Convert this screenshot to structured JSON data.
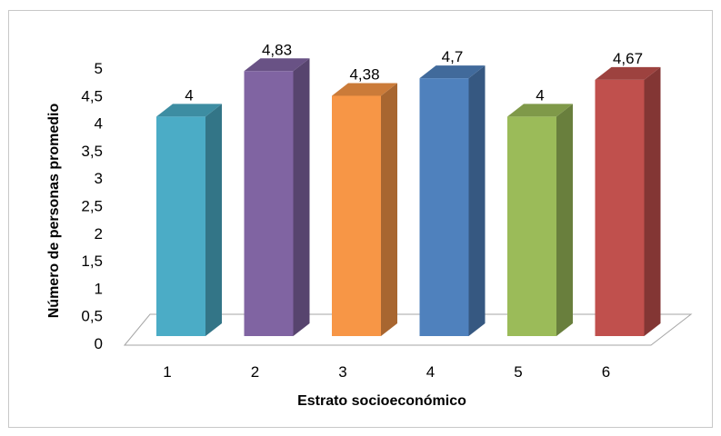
{
  "chart_data": {
    "type": "bar",
    "style": "3d-column",
    "categories": [
      "1",
      "2",
      "3",
      "4",
      "5",
      "6"
    ],
    "values": [
      4,
      4.83,
      4.38,
      4.7,
      4,
      4.67
    ],
    "data_labels": [
      "4",
      "4,83",
      "4,38",
      "4,7",
      "4",
      "4,67"
    ],
    "colors": [
      "#4bacc6",
      "#8064a2",
      "#f79646",
      "#4f81bd",
      "#9bbb59",
      "#c0504d"
    ],
    "xlabel": "Estrato socioeconómico",
    "ylabel": "Número de personas promedio",
    "ylim": [
      0,
      5
    ],
    "yticks": [
      "0",
      "0,5",
      "1",
      "1,5",
      "2",
      "2,5",
      "3",
      "3,5",
      "4",
      "4,5",
      "5"
    ],
    "grid": false,
    "legend": "none"
  }
}
